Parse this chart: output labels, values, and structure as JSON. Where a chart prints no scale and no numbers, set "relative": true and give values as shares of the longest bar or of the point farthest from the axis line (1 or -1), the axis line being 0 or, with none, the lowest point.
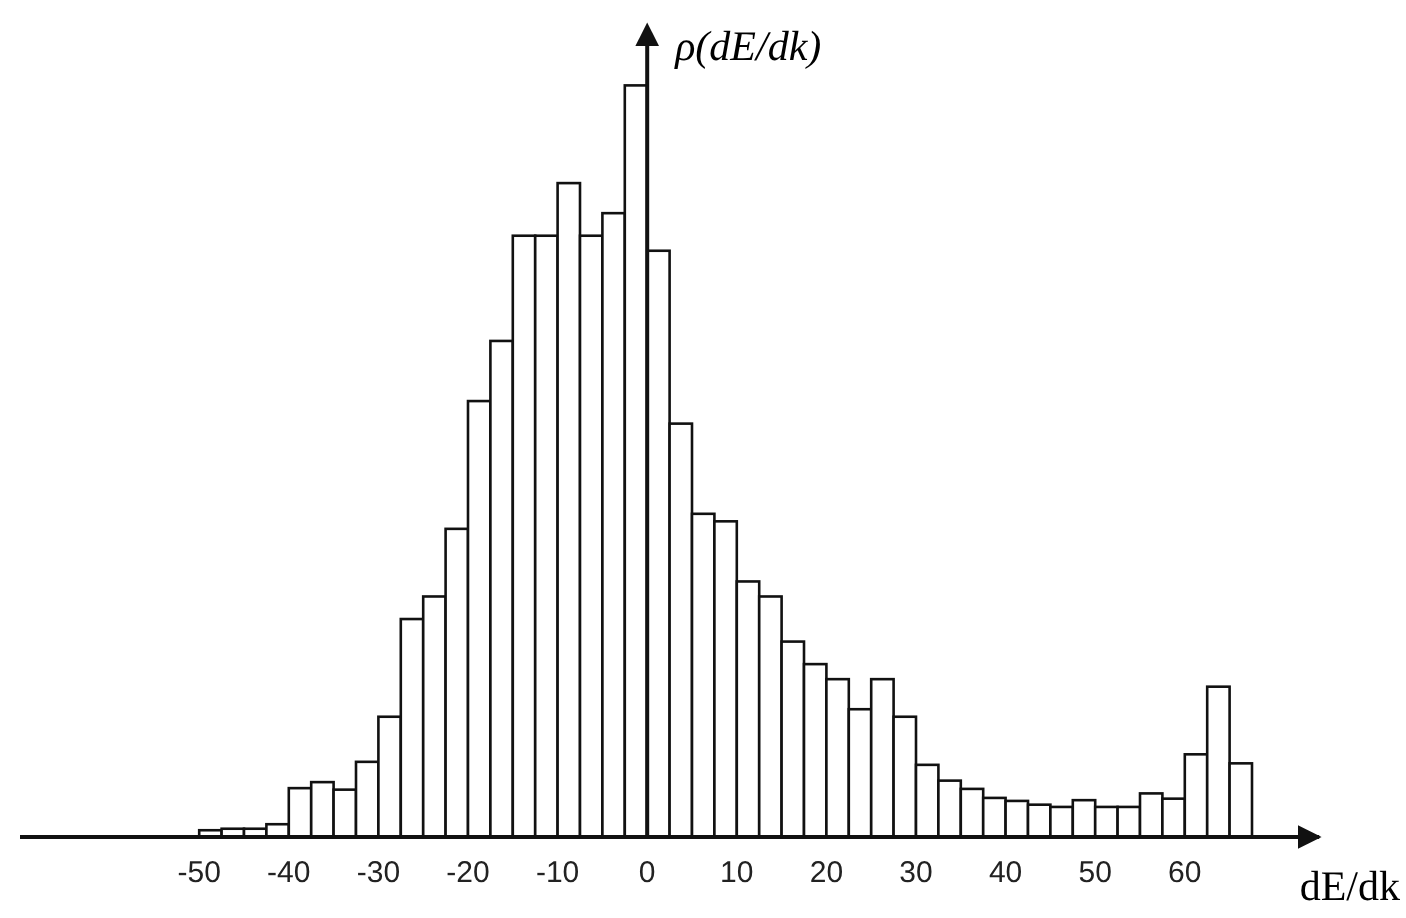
{
  "chart_data": {
    "type": "bar",
    "relative": true,
    "xlabel": "dE/dk",
    "ylabel": "ρ(dE/dk)",
    "x": [
      -48.75,
      -46.25,
      -43.75,
      -41.25,
      -38.75,
      -36.25,
      -33.75,
      -31.25,
      -28.75,
      -26.25,
      -23.75,
      -21.25,
      -18.75,
      -16.25,
      -13.75,
      -11.25,
      -8.75,
      -6.25,
      -3.75,
      -1.25,
      1.25,
      3.75,
      6.25,
      8.75,
      11.25,
      13.75,
      16.25,
      18.75,
      21.25,
      23.75,
      26.25,
      28.75,
      31.25,
      33.75,
      36.25,
      38.75,
      41.25,
      43.75,
      46.25,
      48.75,
      51.25,
      53.75,
      56.25,
      58.75,
      61.25,
      63.75,
      66.25
    ],
    "values": [
      0.009,
      0.011,
      0.011,
      0.017,
      0.065,
      0.073,
      0.063,
      0.1,
      0.16,
      0.29,
      0.32,
      0.41,
      0.58,
      0.66,
      0.8,
      0.8,
      0.87,
      0.8,
      0.83,
      1,
      0.78,
      0.55,
      0.43,
      0.42,
      0.34,
      0.32,
      0.26,
      0.23,
      0.21,
      0.17,
      0.21,
      0.16,
      0.096,
      0.075,
      0.064,
      0.052,
      0.048,
      0.043,
      0.04,
      0.049,
      0.04,
      0.04,
      0.058,
      0.051,
      0.11,
      0.2,
      0.098
    ],
    "color": "#ffffff",
    "xlim": [
      -70,
      75
    ],
    "xticks": [
      -50,
      -40,
      -30,
      -20,
      -10,
      0,
      10,
      20,
      30,
      40,
      50,
      60
    ]
  }
}
